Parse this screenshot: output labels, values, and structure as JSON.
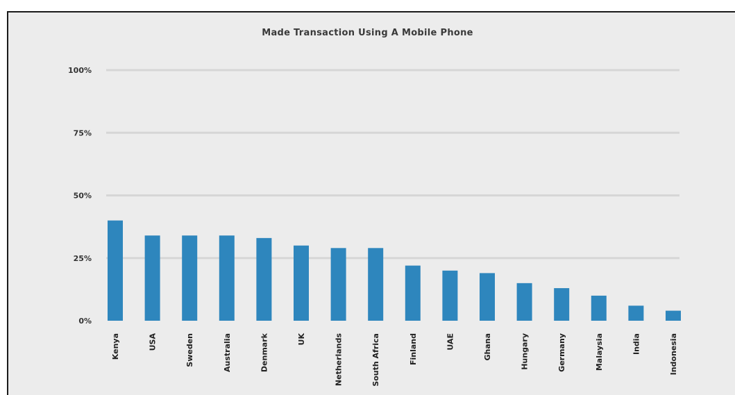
{
  "chart_data": {
    "type": "bar",
    "title": "Made Transaction Using A Mobile Phone",
    "xlabel": "",
    "ylabel": "",
    "categories": [
      "Kenya",
      "USA",
      "Sweden",
      "Australia",
      "Denmark",
      "UK",
      "Netherlands",
      "South Africa",
      "Finland",
      "UAE",
      "Ghana",
      "Hungary",
      "Germany",
      "Malaysia",
      "India",
      "Indonesia"
    ],
    "values": [
      40,
      34,
      34,
      34,
      33,
      30,
      29,
      29,
      22,
      20,
      19,
      15,
      13,
      10,
      6,
      4
    ],
    "ylim": [
      0,
      100
    ],
    "yticks": [
      {
        "value": 0,
        "label": "0%"
      },
      {
        "value": 25,
        "label": "25%"
      },
      {
        "value": 50,
        "label": "50%"
      },
      {
        "value": 75,
        "label": "75%"
      },
      {
        "value": 100,
        "label": "100%"
      }
    ],
    "grid": true,
    "legend": "none",
    "colors": {
      "bar": "#2e86bd",
      "grid": "#d6d6d6",
      "background": "#ececec"
    }
  }
}
